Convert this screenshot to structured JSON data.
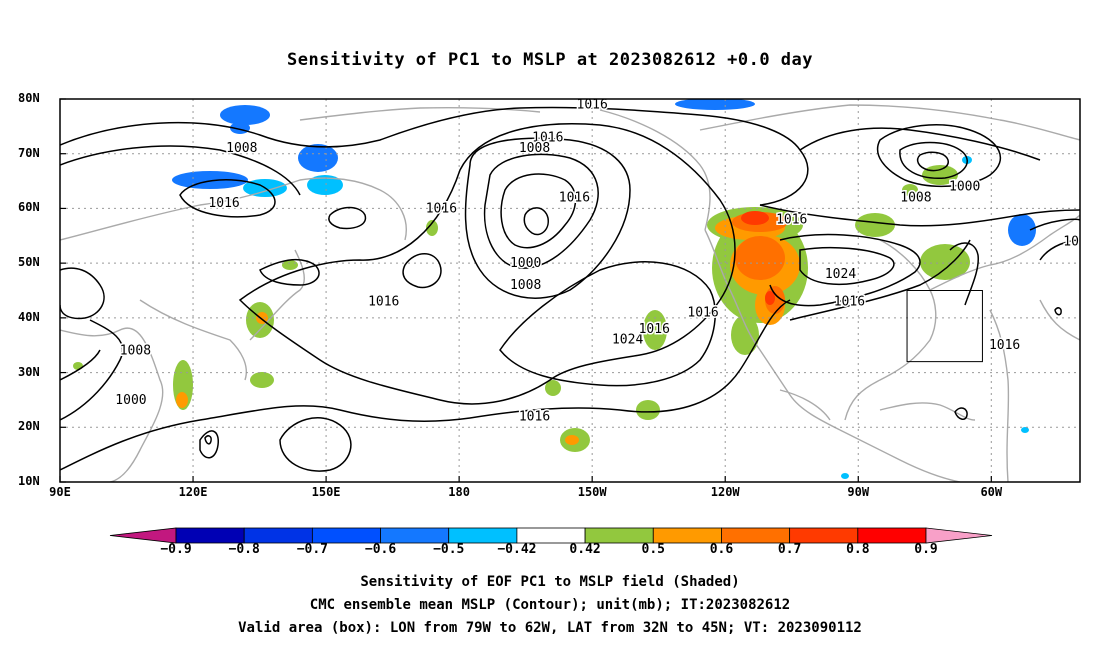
{
  "title": "Sensitivity of PC1 to MSLP at 2023082612 +0.0 day",
  "lat_labels": [
    {
      "text": "80N",
      "lat": 80
    },
    {
      "text": "70N",
      "lat": 70
    },
    {
      "text": "60N",
      "lat": 60
    },
    {
      "text": "50N",
      "lat": 50
    },
    {
      "text": "40N",
      "lat": 40
    },
    {
      "text": "30N",
      "lat": 30
    },
    {
      "text": "20N",
      "lat": 20
    },
    {
      "text": "10N",
      "lat": 10
    }
  ],
  "lon_labels": [
    {
      "text": "90E",
      "lon": 90
    },
    {
      "text": "120E",
      "lon": 120
    },
    {
      "text": "150E",
      "lon": 150
    },
    {
      "text": "180",
      "lon": 180
    },
    {
      "text": "150W",
      "lon": 210
    },
    {
      "text": "120W",
      "lon": 240
    },
    {
      "text": "90W",
      "lon": 270
    },
    {
      "text": "60W",
      "lon": 300
    }
  ],
  "map": {
    "lon_range": [
      90,
      320
    ],
    "lat_range": [
      10,
      80
    ],
    "grid": true,
    "box": {
      "lon_w": 79,
      "lon_e": 62,
      "lat_s": 32,
      "lat_n": 45
    }
  },
  "contour_labels": [
    {
      "text": "1016",
      "lon": 210,
      "lat": 79
    },
    {
      "text": "1016",
      "lon": 200,
      "lat": 73
    },
    {
      "text": "1008",
      "lon": 197,
      "lat": 71
    },
    {
      "text": "1016",
      "lon": 206,
      "lat": 62
    },
    {
      "text": "1000",
      "lon": 195,
      "lat": 50
    },
    {
      "text": "1008",
      "lon": 195,
      "lat": 46
    },
    {
      "text": "1024",
      "lon": 218,
      "lat": 36
    },
    {
      "text": "1016",
      "lon": 224,
      "lat": 38
    },
    {
      "text": "1016",
      "lon": 235,
      "lat": 41
    },
    {
      "text": "1016",
      "lon": 197,
      "lat": 22
    },
    {
      "text": "1016",
      "lon": 255,
      "lat": 58
    },
    {
      "text": "1024",
      "lon": 266,
      "lat": 48
    },
    {
      "text": "1016",
      "lon": 268,
      "lat": 43
    },
    {
      "text": "1008",
      "lon": 283,
      "lat": 62
    },
    {
      "text": "1000",
      "lon": 294,
      "lat": 64
    },
    {
      "text": "1016",
      "lon": 303,
      "lat": 35
    },
    {
      "text": "10",
      "lon": 318,
      "lat": 54
    },
    {
      "text": "1008",
      "lon": 131,
      "lat": 71
    },
    {
      "text": "1016",
      "lon": 127,
      "lat": 61
    },
    {
      "text": "1016",
      "lon": 176,
      "lat": 60
    },
    {
      "text": "1016",
      "lon": 163,
      "lat": 43
    },
    {
      "text": "1008",
      "lon": 107,
      "lat": 34
    },
    {
      "text": "1000",
      "lon": 106,
      "lat": 25
    }
  ],
  "colorbar": {
    "bins": [
      {
        "color": "#c2187f"
      },
      {
        "color": "#0000b4"
      },
      {
        "color": "#0033e6"
      },
      {
        "color": "#0050ff"
      },
      {
        "color": "#1478ff"
      },
      {
        "color": "#00c0ff"
      },
      {
        "color": "#ffffff"
      },
      {
        "color": "#92c83e"
      },
      {
        "color": "#ff9a00"
      },
      {
        "color": "#ff7000"
      },
      {
        "color": "#ff3a00"
      },
      {
        "color": "#ff0000"
      },
      {
        "color": "#f8a0c8"
      }
    ],
    "labels": [
      "−0.9",
      "−0.8",
      "−0.7",
      "−0.6",
      "−0.5",
      "−0.42",
      "0.42",
      "0.5",
      "0.6",
      "0.7",
      "0.8",
      "0.9"
    ]
  },
  "caption": {
    "line1": "Sensitivity of EOF PC1 to MSLP field (Shaded)",
    "line2": "CMC ensemble mean MSLP (Contour); unit(mb); IT:2023082612",
    "line3": "Valid area (box): LON from 79W to 62W, LAT from 32N to 45N; VT: 2023090112"
  }
}
